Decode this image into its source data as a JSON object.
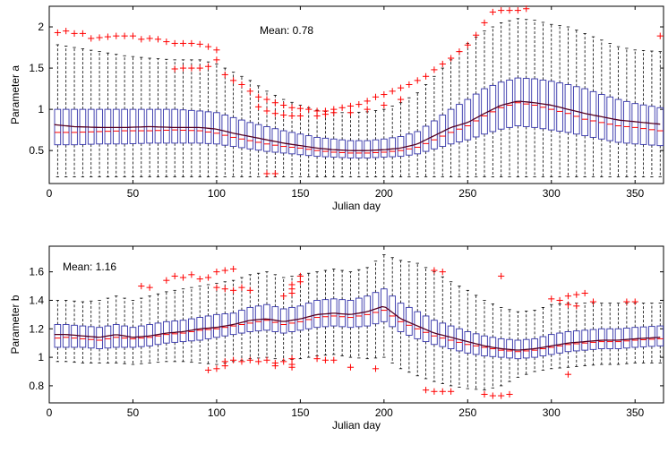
{
  "chart_data": [
    {
      "type": "box",
      "xlabel": "Julian day",
      "ylabel": "Parameter a",
      "annotation": "Mean: 0.78",
      "xlim": [
        0,
        367
      ],
      "ylim": [
        0.1,
        2.25
      ],
      "xticks": [
        0,
        50,
        100,
        150,
        200,
        250,
        300,
        350
      ],
      "yticks": [
        0.5,
        1,
        1.5,
        2
      ],
      "ytick_labels": [
        "0.5",
        "1",
        "1.5",
        "2"
      ],
      "grid": false,
      "colors": {
        "box": "#3333aa",
        "median": "#ff0000",
        "whisker": "#000000",
        "outlier": "#ff0000",
        "mean_line": "#550022"
      },
      "box_step_days": 5,
      "series": {
        "day": [
          0,
          15,
          30,
          45,
          60,
          75,
          90,
          100,
          110,
          120,
          130,
          140,
          150,
          160,
          170,
          180,
          190,
          200,
          210,
          220,
          230,
          240,
          250,
          260,
          270,
          280,
          290,
          300,
          310,
          320,
          330,
          340,
          350,
          365
        ],
        "mean": [
          0.82,
          0.79,
          0.78,
          0.78,
          0.79,
          0.78,
          0.78,
          0.76,
          0.71,
          0.67,
          0.63,
          0.59,
          0.56,
          0.53,
          0.51,
          0.5,
          0.5,
          0.51,
          0.53,
          0.58,
          0.68,
          0.78,
          0.84,
          0.95,
          1.05,
          1.1,
          1.08,
          1.05,
          1.0,
          0.95,
          0.91,
          0.87,
          0.85,
          0.82
        ],
        "median": [
          0.72,
          0.72,
          0.73,
          0.74,
          0.74,
          0.75,
          0.74,
          0.71,
          0.66,
          0.62,
          0.58,
          0.55,
          0.53,
          0.5,
          0.48,
          0.47,
          0.47,
          0.48,
          0.5,
          0.54,
          0.63,
          0.72,
          0.8,
          0.92,
          1.02,
          1.08,
          1.05,
          1.0,
          0.95,
          0.88,
          0.84,
          0.8,
          0.78,
          0.74
        ],
        "q1": [
          0.57,
          0.57,
          0.58,
          0.58,
          0.59,
          0.59,
          0.59,
          0.58,
          0.55,
          0.52,
          0.49,
          0.47,
          0.45,
          0.43,
          0.42,
          0.41,
          0.41,
          0.42,
          0.43,
          0.46,
          0.52,
          0.58,
          0.63,
          0.7,
          0.76,
          0.8,
          0.78,
          0.75,
          0.72,
          0.68,
          0.64,
          0.6,
          0.58,
          0.56
        ],
        "q3": [
          1.0,
          1.0,
          1.0,
          1.0,
          1.0,
          1.0,
          0.98,
          0.96,
          0.9,
          0.84,
          0.79,
          0.74,
          0.7,
          0.66,
          0.64,
          0.62,
          0.62,
          0.64,
          0.67,
          0.73,
          0.86,
          1.0,
          1.12,
          1.25,
          1.33,
          1.38,
          1.37,
          1.34,
          1.3,
          1.25,
          1.18,
          1.12,
          1.07,
          1.02
        ],
        "low": [
          0.18,
          0.18,
          0.18,
          0.18,
          0.18,
          0.18,
          0.18,
          0.18,
          0.18,
          0.18,
          0.18,
          0.18,
          0.18,
          0.18,
          0.18,
          0.18,
          0.18,
          0.18,
          0.18,
          0.18,
          0.18,
          0.18,
          0.18,
          0.18,
          0.18,
          0.18,
          0.18,
          0.18,
          0.18,
          0.18,
          0.18,
          0.18,
          0.18,
          0.18
        ],
        "high": [
          1.8,
          1.75,
          1.7,
          1.65,
          1.62,
          1.6,
          1.6,
          1.55,
          1.45,
          1.35,
          1.22,
          1.12,
          1.05,
          0.99,
          0.96,
          0.96,
          0.97,
          1.0,
          1.08,
          1.2,
          1.4,
          1.6,
          1.8,
          1.95,
          2.05,
          2.1,
          2.08,
          2.03,
          2.0,
          1.92,
          1.84,
          1.76,
          1.72,
          1.7
        ]
      },
      "outliers": [
        [
          5,
          1.93
        ],
        [
          10,
          1.95
        ],
        [
          15,
          1.92
        ],
        [
          20,
          1.92
        ],
        [
          25,
          1.86
        ],
        [
          30,
          1.87
        ],
        [
          35,
          1.88
        ],
        [
          40,
          1.89
        ],
        [
          45,
          1.89
        ],
        [
          50,
          1.89
        ],
        [
          55,
          1.85
        ],
        [
          60,
          1.86
        ],
        [
          65,
          1.85
        ],
        [
          70,
          1.82
        ],
        [
          75,
          1.8
        ],
        [
          80,
          1.8
        ],
        [
          85,
          1.8
        ],
        [
          90,
          1.79
        ],
        [
          95,
          1.76
        ],
        [
          100,
          1.72
        ],
        [
          75,
          1.49
        ],
        [
          80,
          1.5
        ],
        [
          85,
          1.5
        ],
        [
          90,
          1.5
        ],
        [
          95,
          1.52
        ],
        [
          100,
          1.6
        ],
        [
          105,
          1.42
        ],
        [
          110,
          1.35
        ],
        [
          115,
          1.3
        ],
        [
          120,
          1.22
        ],
        [
          125,
          1.15
        ],
        [
          130,
          1.12
        ],
        [
          135,
          1.08
        ],
        [
          140,
          1.05
        ],
        [
          145,
          1.02
        ],
        [
          150,
          1.01
        ],
        [
          155,
          1.0
        ],
        [
          160,
          0.98
        ],
        [
          165,
          0.98
        ],
        [
          170,
          1.0
        ],
        [
          175,
          1.02
        ],
        [
          180,
          1.04
        ],
        [
          185,
          1.06
        ],
        [
          190,
          1.1
        ],
        [
          195,
          1.15
        ],
        [
          200,
          1.18
        ],
        [
          205,
          1.22
        ],
        [
          210,
          1.26
        ],
        [
          215,
          1.3
        ],
        [
          220,
          1.35
        ],
        [
          225,
          1.4
        ],
        [
          230,
          1.48
        ],
        [
          235,
          1.55
        ],
        [
          240,
          1.62
        ],
        [
          245,
          1.7
        ],
        [
          250,
          1.78
        ],
        [
          255,
          1.9
        ],
        [
          260,
          2.05
        ],
        [
          265,
          2.18
        ],
        [
          270,
          2.2
        ],
        [
          275,
          2.2
        ],
        [
          280,
          2.2
        ],
        [
          285,
          2.22
        ],
        [
          125,
          1.03
        ],
        [
          130,
          0.98
        ],
        [
          135,
          0.95
        ],
        [
          140,
          0.93
        ],
        [
          145,
          0.92
        ],
        [
          150,
          0.92
        ],
        [
          160,
          0.92
        ],
        [
          165,
          0.94
        ],
        [
          170,
          0.96
        ],
        [
          180,
          0.96
        ],
        [
          190,
          1.0
        ],
        [
          200,
          1.05
        ],
        [
          210,
          1.12
        ],
        [
          130,
          0.22
        ],
        [
          135,
          0.22
        ],
        [
          365,
          1.89
        ]
      ]
    },
    {
      "type": "box",
      "xlabel": "Julian day",
      "ylabel": "Parameter b",
      "annotation": "Mean: 1.16",
      "xlim": [
        0,
        367
      ],
      "ylim": [
        0.68,
        1.78
      ],
      "xticks": [
        0,
        50,
        100,
        150,
        200,
        250,
        300,
        350
      ],
      "yticks": [
        0.8,
        1,
        1.2,
        1.4,
        1.6
      ],
      "ytick_labels": [
        "0.8",
        "1",
        "1.2",
        "1.4",
        "1.6"
      ],
      "grid": false,
      "colors": {
        "box": "#3333aa",
        "median": "#ff0000",
        "whisker": "#000000",
        "outlier": "#ff0000",
        "mean_line": "#550022"
      },
      "box_step_days": 5,
      "series": {
        "day": [
          0,
          10,
          20,
          30,
          40,
          50,
          60,
          70,
          80,
          90,
          100,
          110,
          120,
          130,
          140,
          150,
          160,
          170,
          180,
          190,
          200,
          210,
          220,
          230,
          240,
          250,
          260,
          270,
          280,
          290,
          300,
          310,
          320,
          330,
          340,
          350,
          365
        ],
        "mean": [
          1.16,
          1.16,
          1.15,
          1.14,
          1.16,
          1.14,
          1.15,
          1.17,
          1.18,
          1.2,
          1.21,
          1.23,
          1.26,
          1.27,
          1.25,
          1.27,
          1.3,
          1.31,
          1.3,
          1.32,
          1.36,
          1.27,
          1.22,
          1.17,
          1.14,
          1.11,
          1.08,
          1.06,
          1.05,
          1.06,
          1.08,
          1.1,
          1.11,
          1.12,
          1.12,
          1.13,
          1.14
        ],
        "median": [
          1.13,
          1.14,
          1.13,
          1.12,
          1.14,
          1.13,
          1.14,
          1.16,
          1.17,
          1.19,
          1.2,
          1.22,
          1.24,
          1.26,
          1.23,
          1.25,
          1.28,
          1.29,
          1.28,
          1.3,
          1.33,
          1.25,
          1.2,
          1.15,
          1.12,
          1.09,
          1.07,
          1.05,
          1.04,
          1.05,
          1.07,
          1.09,
          1.1,
          1.11,
          1.11,
          1.12,
          1.13
        ],
        "q1": [
          1.07,
          1.07,
          1.07,
          1.06,
          1.07,
          1.07,
          1.08,
          1.1,
          1.11,
          1.12,
          1.14,
          1.16,
          1.18,
          1.19,
          1.17,
          1.19,
          1.21,
          1.22,
          1.21,
          1.22,
          1.25,
          1.18,
          1.13,
          1.09,
          1.06,
          1.03,
          1.01,
          1.0,
          0.99,
          1.0,
          1.02,
          1.04,
          1.05,
          1.06,
          1.06,
          1.07,
          1.08
        ],
        "q3": [
          1.23,
          1.23,
          1.22,
          1.21,
          1.23,
          1.21,
          1.23,
          1.25,
          1.26,
          1.28,
          1.3,
          1.31,
          1.35,
          1.37,
          1.34,
          1.36,
          1.4,
          1.41,
          1.4,
          1.43,
          1.48,
          1.38,
          1.32,
          1.26,
          1.22,
          1.18,
          1.15,
          1.13,
          1.12,
          1.13,
          1.16,
          1.18,
          1.19,
          1.2,
          1.2,
          1.21,
          1.22
        ],
        "low": [
          0.97,
          0.97,
          0.96,
          0.96,
          0.96,
          0.95,
          0.96,
          0.97,
          0.97,
          0.96,
          0.95,
          0.97,
          0.99,
          1.0,
          0.98,
          0.99,
          1.01,
          1.02,
          1.0,
          0.99,
          1.0,
          0.92,
          0.87,
          0.83,
          0.8,
          0.78,
          0.77,
          0.8,
          0.86,
          0.9,
          0.92,
          0.93,
          0.94,
          0.95,
          0.95,
          0.96,
          0.96
        ],
        "high": [
          1.4,
          1.4,
          1.39,
          1.4,
          1.43,
          1.4,
          1.43,
          1.46,
          1.48,
          1.5,
          1.52,
          1.54,
          1.58,
          1.6,
          1.56,
          1.58,
          1.6,
          1.62,
          1.6,
          1.63,
          1.72,
          1.68,
          1.66,
          1.6,
          1.53,
          1.47,
          1.4,
          1.35,
          1.32,
          1.33,
          1.37,
          1.38,
          1.38,
          1.38,
          1.38,
          1.38,
          1.38
        ]
      },
      "outliers": [
        [
          55,
          1.5
        ],
        [
          60,
          1.49
        ],
        [
          70,
          1.54
        ],
        [
          75,
          1.57
        ],
        [
          80,
          1.56
        ],
        [
          85,
          1.58
        ],
        [
          90,
          1.55
        ],
        [
          95,
          1.56
        ],
        [
          100,
          1.6
        ],
        [
          105,
          1.61
        ],
        [
          110,
          1.62
        ],
        [
          100,
          1.49
        ],
        [
          105,
          1.48
        ],
        [
          110,
          1.47
        ],
        [
          115,
          1.49
        ],
        [
          120,
          1.47
        ],
        [
          140,
          1.43
        ],
        [
          145,
          1.45
        ],
        [
          145,
          1.48
        ],
        [
          145,
          1.51
        ],
        [
          150,
          1.53
        ],
        [
          150,
          1.57
        ],
        [
          95,
          0.91
        ],
        [
          100,
          0.92
        ],
        [
          105,
          0.94
        ],
        [
          105,
          0.97
        ],
        [
          110,
          0.98
        ],
        [
          115,
          0.97
        ],
        [
          120,
          0.98
        ],
        [
          125,
          0.97
        ],
        [
          130,
          0.98
        ],
        [
          135,
          0.96
        ],
        [
          140,
          0.97
        ],
        [
          145,
          0.99
        ],
        [
          145,
          0.95
        ],
        [
          135,
          0.94
        ],
        [
          145,
          0.93
        ],
        [
          160,
          0.99
        ],
        [
          165,
          0.98
        ],
        [
          170,
          0.98
        ],
        [
          180,
          0.93
        ],
        [
          195,
          0.92
        ],
        [
          230,
          1.61
        ],
        [
          235,
          1.6
        ],
        [
          225,
          0.77
        ],
        [
          230,
          0.76
        ],
        [
          235,
          0.76
        ],
        [
          240,
          0.76
        ],
        [
          260,
          0.74
        ],
        [
          265,
          0.73
        ],
        [
          270,
          0.73
        ],
        [
          275,
          0.74
        ],
        [
          270,
          1.57
        ],
        [
          300,
          1.41
        ],
        [
          305,
          1.4
        ],
        [
          310,
          1.43
        ],
        [
          315,
          1.44
        ],
        [
          320,
          1.45
        ],
        [
          310,
          1.37
        ],
        [
          315,
          1.36
        ],
        [
          325,
          1.39
        ],
        [
          345,
          1.39
        ],
        [
          350,
          1.39
        ],
        [
          310,
          0.88
        ]
      ]
    }
  ]
}
